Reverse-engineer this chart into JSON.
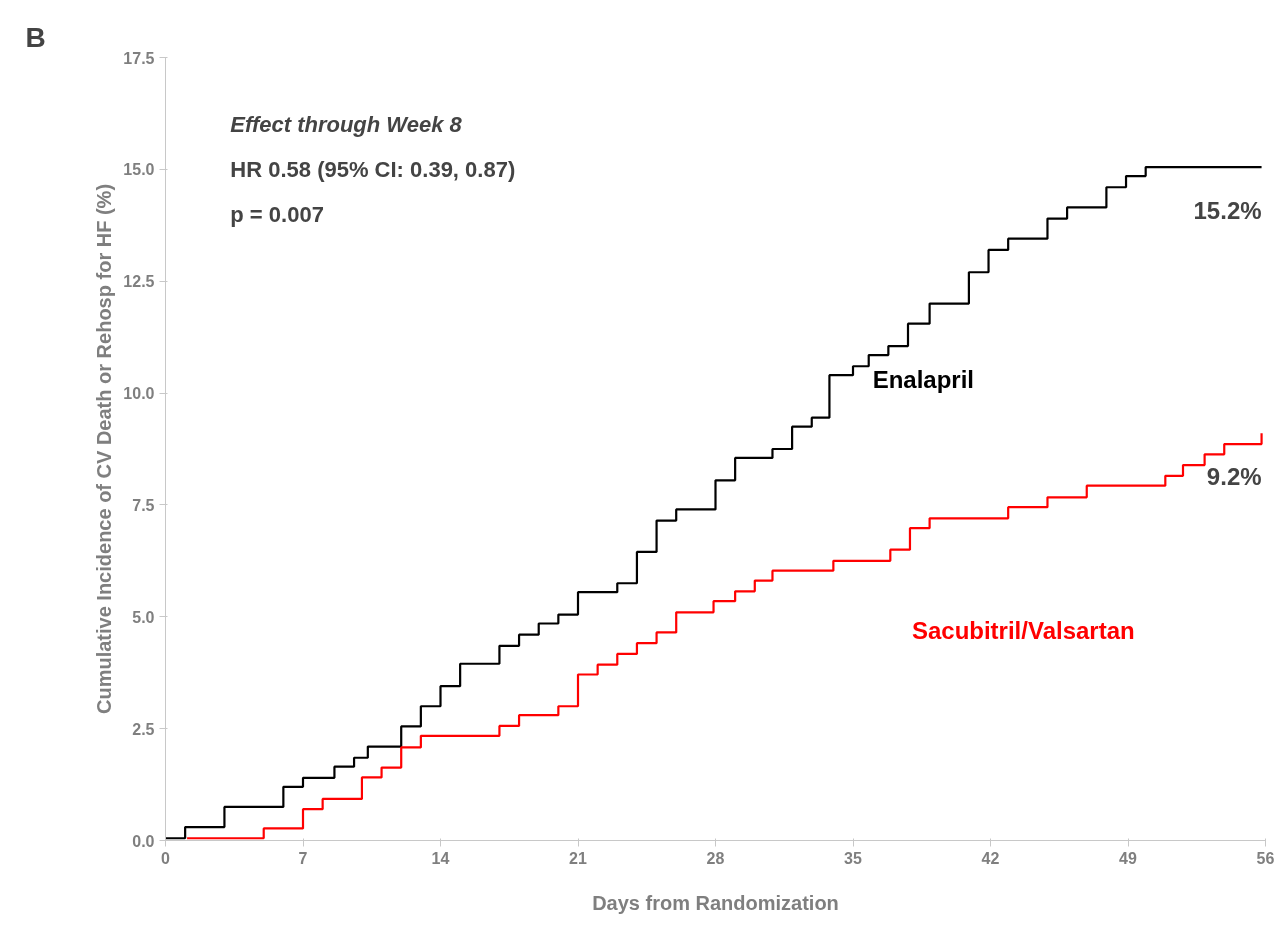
{
  "chart_data": {
    "type": "step",
    "title": "B",
    "xlabel": "Days from Randomization",
    "ylabel": "Cumulative Incidence of CV Death or Rehosp for HF (%)",
    "xlim": [
      0,
      56
    ],
    "ylim": [
      0,
      17.5
    ],
    "xticks": [
      0,
      7,
      14,
      21,
      28,
      35,
      42,
      49,
      56
    ],
    "yticks": [
      {
        "value": 0,
        "label": "0.0"
      },
      {
        "value": 2.5,
        "label": "2.5"
      },
      {
        "value": 5,
        "label": "5.0"
      },
      {
        "value": 7.5,
        "label": "7.5"
      },
      {
        "value": 10,
        "label": "10.0"
      },
      {
        "value": 12.5,
        "label": "12.5"
      },
      {
        "value": 15,
        "label": "15.0"
      },
      {
        "value": 17.5,
        "label": "17.5"
      }
    ],
    "grid": false,
    "series": [
      {
        "name": "Enalapril",
        "color": "#000000",
        "x": [
          0,
          1,
          3,
          6,
          7,
          8.6,
          9.6,
          10.3,
          12,
          13,
          14,
          15,
          17,
          18,
          19,
          20,
          21,
          23,
          24,
          25,
          26,
          28,
          29,
          30.9,
          31.9,
          32.9,
          33.8,
          35,
          35.8,
          36.8,
          37.8,
          38.9,
          40.9,
          41.9,
          42.9,
          44.9,
          45.9,
          47.9,
          48.9,
          49.9,
          55.8
        ],
        "values": [
          0.05,
          0.3,
          0.75,
          1.2,
          1.4,
          1.65,
          1.85,
          2.1,
          2.55,
          3.0,
          3.45,
          3.95,
          4.35,
          4.6,
          4.85,
          5.05,
          5.55,
          5.75,
          6.45,
          7.15,
          7.4,
          8.05,
          8.55,
          8.75,
          9.25,
          9.45,
          10.4,
          10.6,
          10.85,
          11.05,
          11.55,
          12.0,
          12.7,
          13.2,
          13.45,
          13.9,
          14.15,
          14.6,
          14.85,
          15.05,
          15.05
        ]
      },
      {
        "name": "Sacubitril/Valsartan",
        "color": "#ff0000",
        "x": [
          1.1,
          5,
          7,
          8,
          10,
          11,
          12,
          13,
          17,
          18,
          20,
          21,
          22,
          23,
          24,
          25,
          26,
          27.9,
          29,
          30,
          30.9,
          34,
          36.9,
          37.9,
          38.9,
          42.9,
          44.9,
          46.9,
          50.9,
          51.8,
          52.9,
          53.9,
          55.8
        ],
        "values": [
          0.05,
          0.27,
          0.7,
          0.93,
          1.41,
          1.63,
          2.08,
          2.34,
          2.56,
          2.8,
          3.0,
          3.71,
          3.93,
          4.17,
          4.41,
          4.65,
          5.1,
          5.35,
          5.57,
          5.81,
          6.03,
          6.25,
          6.5,
          6.98,
          7.2,
          7.45,
          7.67,
          7.93,
          8.15,
          8.39,
          8.63,
          8.86,
          9.1
        ]
      }
    ],
    "annotations": [
      "Effect through Week 8",
      "HR 0.58 (95% CI: 0.39, 0.87)",
      "p = 0.007",
      {
        "text": "15.2%",
        "x": 55.8,
        "y": 15.05
      },
      {
        "text": "9.2%",
        "x": 55.8,
        "y": 9.1
      }
    ]
  }
}
